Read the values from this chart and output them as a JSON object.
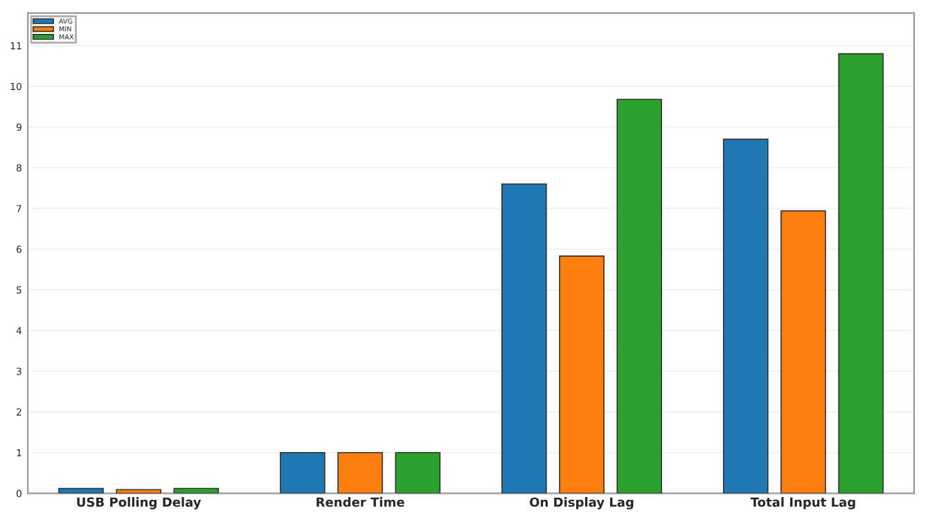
{
  "chart_data": {
    "type": "bar",
    "categories": [
      "USB Polling Delay",
      "Render Time",
      "On Display Lag",
      "Total Input Lag"
    ],
    "series": [
      {
        "name": "AVG",
        "color": "#1f77b4",
        "values": [
          0.12,
          1.0,
          7.6,
          8.7
        ]
      },
      {
        "name": "MIN",
        "color": "#ff7f0e",
        "values": [
          0.09,
          1.0,
          5.83,
          6.94
        ]
      },
      {
        "name": "MAX",
        "color": "#2ca02c",
        "values": [
          0.12,
          1.0,
          9.68,
          10.8
        ]
      }
    ],
    "ylim": [
      0,
      11.8
    ],
    "yticks": [
      0,
      1,
      2,
      3,
      4,
      5,
      6,
      7,
      8,
      9,
      10,
      11
    ],
    "grid": "y",
    "legend": "top left"
  }
}
